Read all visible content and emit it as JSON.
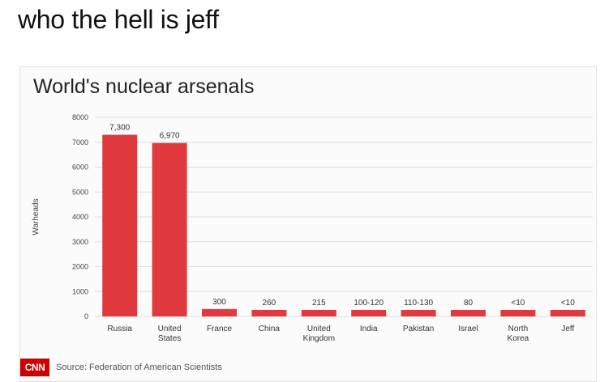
{
  "caption": "who the hell is jeff",
  "footer": {
    "logo_text": "CNN",
    "source": "Source: Federation of American Scientists"
  },
  "colors": {
    "bar": "#e0393e",
    "accent": "#cc0000",
    "grid": "#dcdcdc"
  },
  "chart_data": {
    "type": "bar",
    "title": "World's nuclear arsenals",
    "ylabel": "Warheads",
    "xlabel": "",
    "ylim": [
      0,
      8000
    ],
    "yticks": [
      0,
      1000,
      2000,
      3000,
      4000,
      5000,
      6000,
      7000,
      8000
    ],
    "grid": true,
    "categories": [
      [
        "Russia"
      ],
      [
        "United",
        "States"
      ],
      [
        "France"
      ],
      [
        "China"
      ],
      [
        "United",
        "Kingdom"
      ],
      [
        "India"
      ],
      [
        "Pakistan"
      ],
      [
        "Israel"
      ],
      [
        "North",
        "Korea"
      ],
      [
        "Jeff"
      ]
    ],
    "values": [
      7300,
      6970,
      300,
      260,
      215,
      110,
      120,
      80,
      10,
      10
    ],
    "data_labels": [
      "7,300",
      "6,970",
      "300",
      "260",
      "215",
      "100-120",
      "110-130",
      "80",
      "<10",
      "<10"
    ]
  }
}
